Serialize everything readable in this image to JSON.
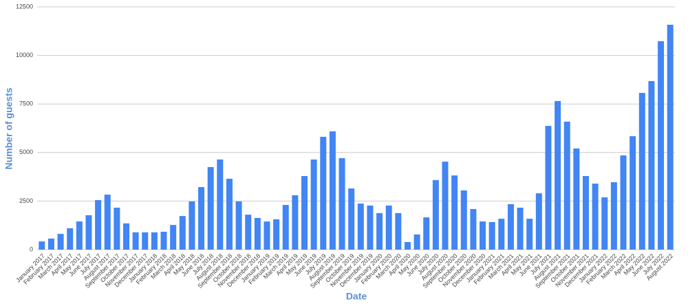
{
  "chart_data": {
    "type": "bar",
    "x_label": "Date",
    "y_label": "Number of guests",
    "categories": [
      "January 2017",
      "February 2017",
      "March 2017",
      "April 2017",
      "May 2017",
      "June 2017",
      "July 2017",
      "August 2017",
      "September 2017",
      "October 2017",
      "November 2017",
      "December 2017",
      "January 2018",
      "February 2018",
      "March 2018",
      "April 2018",
      "May 2018",
      "June 2018",
      "July 2018",
      "August 2018",
      "September 2018",
      "October 2018",
      "November 2018",
      "December 2018",
      "January 2019",
      "February 2019",
      "March 2019",
      "April 2019",
      "May 2019",
      "June 2019",
      "July 2019",
      "August 2019",
      "September 2019",
      "October 2019",
      "November 2019",
      "December 2019",
      "January 2020",
      "February 2020",
      "March 2020",
      "April 2020",
      "May 2020",
      "June 2020",
      "July 2020",
      "August 2020",
      "September 2020",
      "October 2020",
      "November 2020",
      "December 2020",
      "January 2021",
      "February 2021",
      "March 2021",
      "April 2021",
      "May 2021",
      "June 2021",
      "July 2021",
      "August 2021",
      "September 2021",
      "October 2021",
      "November 2021",
      "December 2021",
      "January 2022",
      "February 2022",
      "March 2022",
      "April 2022",
      "May 2022",
      "June 2022",
      "July 2022",
      "August 2022"
    ],
    "values": [
      420,
      570,
      810,
      1100,
      1450,
      1770,
      2550,
      2830,
      2160,
      1350,
      890,
      890,
      890,
      920,
      1270,
      1730,
      2480,
      3220,
      4250,
      4640,
      3650,
      2480,
      1800,
      1630,
      1450,
      1560,
      2300,
      2800,
      3790,
      4640,
      5810,
      6090,
      4710,
      3150,
      2370,
      2270,
      1880,
      2270,
      1880,
      390,
      780,
      1660,
      3580,
      4530,
      3820,
      3050,
      2090,
      1450,
      1420,
      1590,
      2340,
      2160,
      1590,
      2900,
      6370,
      7650,
      6590,
      5210,
      3790,
      3400,
      2690,
      3470,
      4850,
      5840,
      8070,
      8680,
      10730,
      11580
    ],
    "color": "#4285f4",
    "ylim": [
      0,
      12500
    ],
    "yticks": [
      0,
      2500,
      5000,
      7500,
      10000,
      12500
    ],
    "grid": true
  }
}
